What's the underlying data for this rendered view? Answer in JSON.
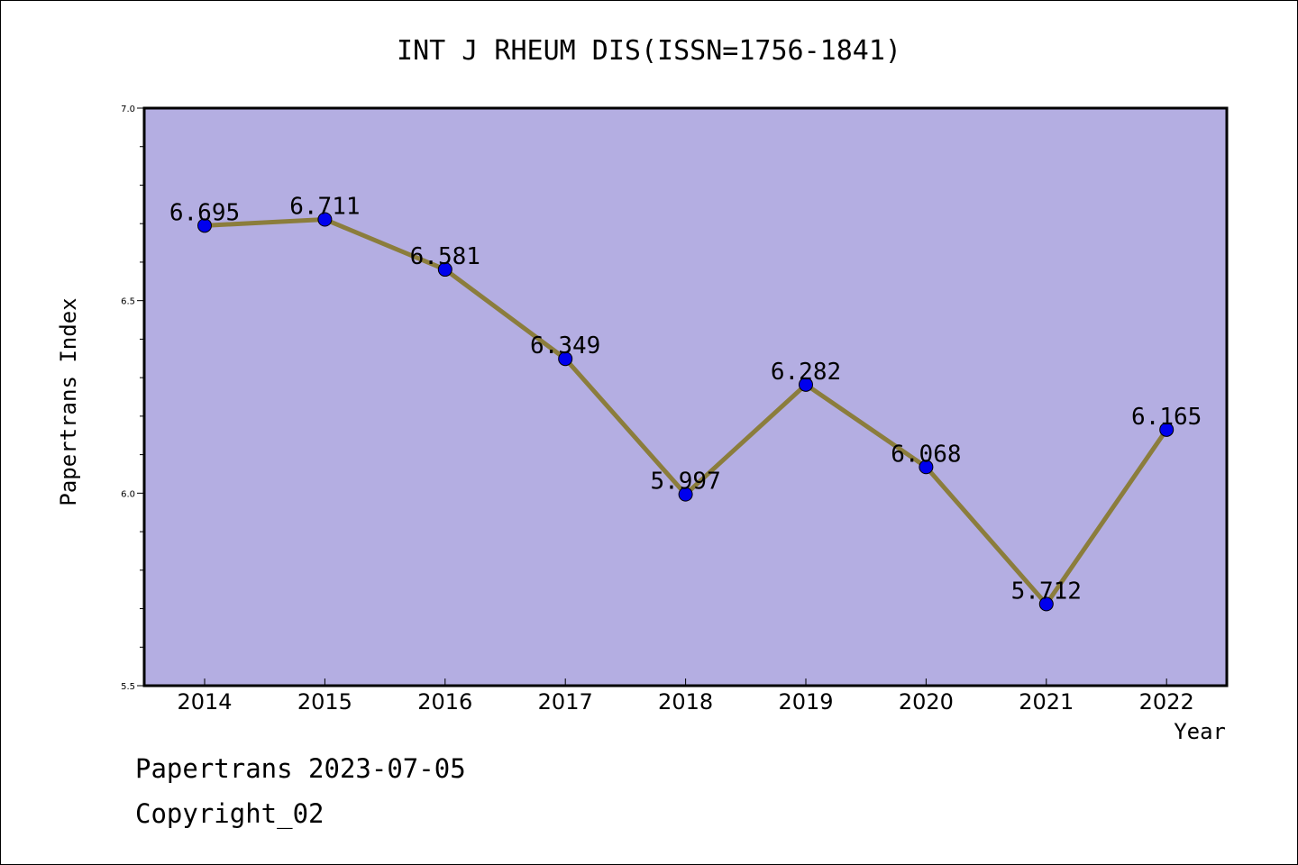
{
  "footer": {
    "line1": "Papertrans 2023-07-05",
    "line2": "Copyright_02"
  },
  "chart_data": {
    "type": "line",
    "title": "INT J RHEUM DIS(ISSN=1756-1841)",
    "xlabel": "Year",
    "ylabel": "Papertrans Index",
    "categories": [
      "2014",
      "2015",
      "2016",
      "2017",
      "2018",
      "2019",
      "2020",
      "2021",
      "2022"
    ],
    "values": [
      6.695,
      6.711,
      6.581,
      6.349,
      5.997,
      6.282,
      6.068,
      5.712,
      6.165
    ],
    "data_labels": [
      "6.695",
      "6.711",
      "6.581",
      "6.349",
      "5.997",
      "6.282",
      "6.068",
      "5.712",
      "6.165"
    ],
    "ylim": [
      5.5,
      7.0
    ],
    "yticks": [
      "5.5",
      "6.0",
      "6.5",
      "7.0"
    ],
    "grid": false,
    "colors": {
      "plot_background": "#b4aee2",
      "line": "#8b7d3c",
      "marker": "#0000ee"
    }
  }
}
